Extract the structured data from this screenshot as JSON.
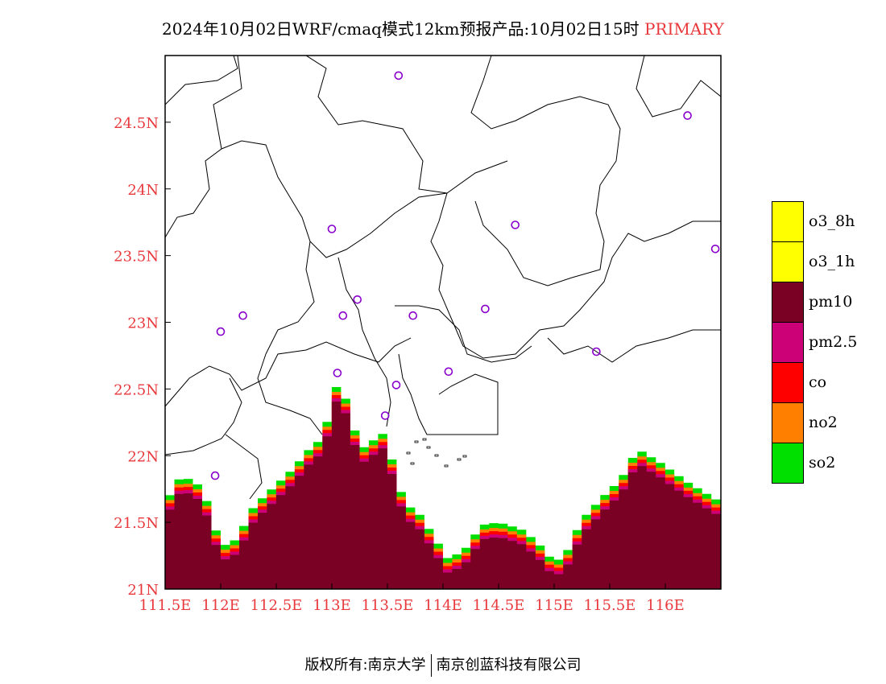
{
  "title": {
    "text": "2024年10月02日WRF/cmaq模式12km预报产品:10月02日15时",
    "tag": "PRIMARY",
    "tag_color": "#e8383c"
  },
  "axes": {
    "label_color": "#e8383c",
    "x_ticks": [
      {
        "value": 111.5,
        "label": "111.5E"
      },
      {
        "value": 112.0,
        "label": "112E"
      },
      {
        "value": 112.5,
        "label": "112.5E"
      },
      {
        "value": 113.0,
        "label": "113E"
      },
      {
        "value": 113.5,
        "label": "113.5E"
      },
      {
        "value": 114.0,
        "label": "114E"
      },
      {
        "value": 114.5,
        "label": "114.5E"
      },
      {
        "value": 115.0,
        "label": "115E"
      },
      {
        "value": 115.5,
        "label": "115.5E"
      },
      {
        "value": 116.0,
        "label": "116E"
      }
    ],
    "y_ticks": [
      {
        "value": 21.0,
        "label": "21N"
      },
      {
        "value": 21.5,
        "label": "21.5N"
      },
      {
        "value": 22.0,
        "label": "22N"
      },
      {
        "value": 22.5,
        "label": "22.5N"
      },
      {
        "value": 23.0,
        "label": "23N"
      },
      {
        "value": 23.5,
        "label": "23.5N"
      },
      {
        "value": 24.0,
        "label": "24N"
      },
      {
        "value": 24.5,
        "label": "24.5N"
      }
    ],
    "lon_range": [
      111.5,
      116.5
    ],
    "lat_range": [
      21.0,
      25.0
    ]
  },
  "legend": [
    {
      "label": "o3_8h",
      "color": "#ffff00"
    },
    {
      "label": "o3_1h",
      "color": "#ffff00"
    },
    {
      "label": "pm10",
      "color": "#7a0024"
    },
    {
      "label": "pm2.5",
      "color": "#cc0077"
    },
    {
      "label": "co",
      "color": "#ff0000"
    },
    {
      "label": "no2",
      "color": "#ff7f00"
    },
    {
      "label": "so2",
      "color": "#00e000"
    }
  ],
  "stations": [
    {
      "lon": 113.6,
      "lat": 24.85
    },
    {
      "lon": 116.2,
      "lat": 24.55
    },
    {
      "lon": 113.0,
      "lat": 23.7
    },
    {
      "lon": 114.65,
      "lat": 23.73
    },
    {
      "lon": 116.45,
      "lat": 23.55
    },
    {
      "lon": 113.23,
      "lat": 23.17
    },
    {
      "lon": 112.2,
      "lat": 23.05
    },
    {
      "lon": 113.1,
      "lat": 23.05
    },
    {
      "lon": 113.73,
      "lat": 23.05
    },
    {
      "lon": 114.38,
      "lat": 23.1
    },
    {
      "lon": 112.0,
      "lat": 22.93
    },
    {
      "lon": 115.38,
      "lat": 22.78
    },
    {
      "lon": 113.05,
      "lat": 22.62
    },
    {
      "lon": 113.58,
      "lat": 22.53
    },
    {
      "lon": 114.05,
      "lat": 22.63
    },
    {
      "lon": 113.48,
      "lat": 22.3
    },
    {
      "lon": 111.95,
      "lat": 21.85
    }
  ],
  "station_color": "#8800cc",
  "pollution_fill": {
    "legend_order": [
      "pm10",
      "pm2.5",
      "co",
      "no2",
      "so2"
    ],
    "top_profile": [
      [
        111.5,
        21.62
      ],
      [
        111.55,
        21.72
      ],
      [
        111.6,
        21.82
      ],
      [
        111.7,
        21.83
      ],
      [
        111.8,
        21.78
      ],
      [
        111.9,
        21.62
      ],
      [
        111.95,
        21.45
      ],
      [
        112.05,
        21.32
      ],
      [
        112.15,
        21.38
      ],
      [
        112.3,
        21.62
      ],
      [
        112.5,
        21.78
      ],
      [
        112.65,
        21.9
      ],
      [
        112.8,
        22.05
      ],
      [
        112.9,
        22.12
      ],
      [
        113.0,
        22.35
      ],
      [
        113.05,
        22.55
      ],
      [
        113.1,
        22.5
      ],
      [
        113.2,
        22.2
      ],
      [
        113.3,
        22.05
      ],
      [
        113.45,
        22.18
      ],
      [
        113.55,
        21.95
      ],
      [
        113.65,
        21.65
      ],
      [
        113.8,
        21.55
      ],
      [
        113.95,
        21.35
      ],
      [
        114.05,
        21.22
      ],
      [
        114.2,
        21.3
      ],
      [
        114.35,
        21.48
      ],
      [
        114.5,
        21.5
      ],
      [
        114.7,
        21.45
      ],
      [
        114.85,
        21.35
      ],
      [
        115.0,
        21.2
      ],
      [
        115.1,
        21.25
      ],
      [
        115.25,
        21.52
      ],
      [
        115.45,
        21.7
      ],
      [
        115.6,
        21.82
      ],
      [
        115.75,
        22.05
      ],
      [
        115.95,
        21.95
      ],
      [
        116.2,
        21.8
      ],
      [
        116.4,
        21.7
      ],
      [
        116.5,
        21.65
      ]
    ]
  },
  "footer": {
    "left": "版权所有:南京大学",
    "right": "南京创蓝科技有限公司"
  }
}
